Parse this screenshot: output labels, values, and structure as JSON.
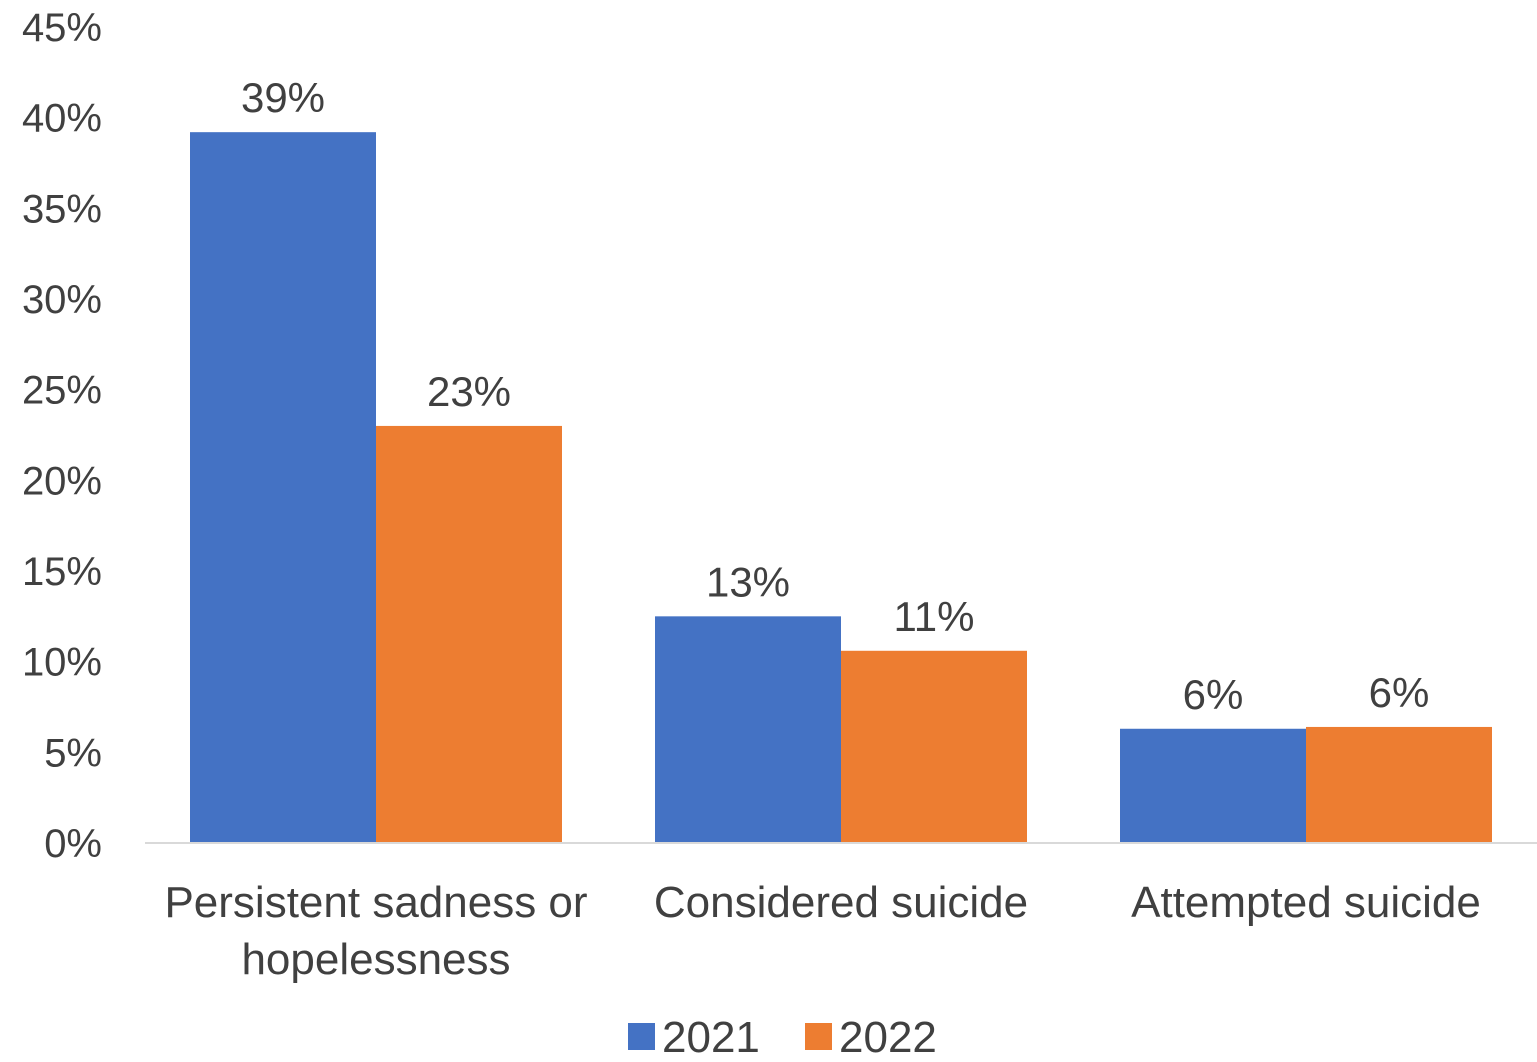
{
  "chart_data": {
    "type": "bar",
    "categories": [
      [
        "Persistent sadness or",
        "hopelessness"
      ],
      [
        "Considered suicide"
      ],
      [
        "Attempted suicide"
      ]
    ],
    "series": [
      {
        "name": "2021",
        "color": "#4472C4",
        "values": [
          39.2,
          12.5,
          6.3
        ],
        "labels": [
          "39%",
          "13%",
          "6%"
        ]
      },
      {
        "name": "2022",
        "color": "#ED7D31",
        "values": [
          23.0,
          10.6,
          6.4
        ],
        "labels": [
          "23%",
          "11%",
          "6%"
        ]
      }
    ],
    "ylim": [
      0,
      45
    ],
    "yticks": [
      0,
      5,
      10,
      15,
      20,
      25,
      30,
      35,
      40,
      45
    ],
    "ytick_labels": [
      "0%",
      "5%",
      "10%",
      "15%",
      "20%",
      "25%",
      "30%",
      "35%",
      "40%",
      "45%"
    ],
    "title": "",
    "xlabel": "",
    "ylabel": "",
    "grid": false,
    "legend_position": "bottom-center"
  }
}
